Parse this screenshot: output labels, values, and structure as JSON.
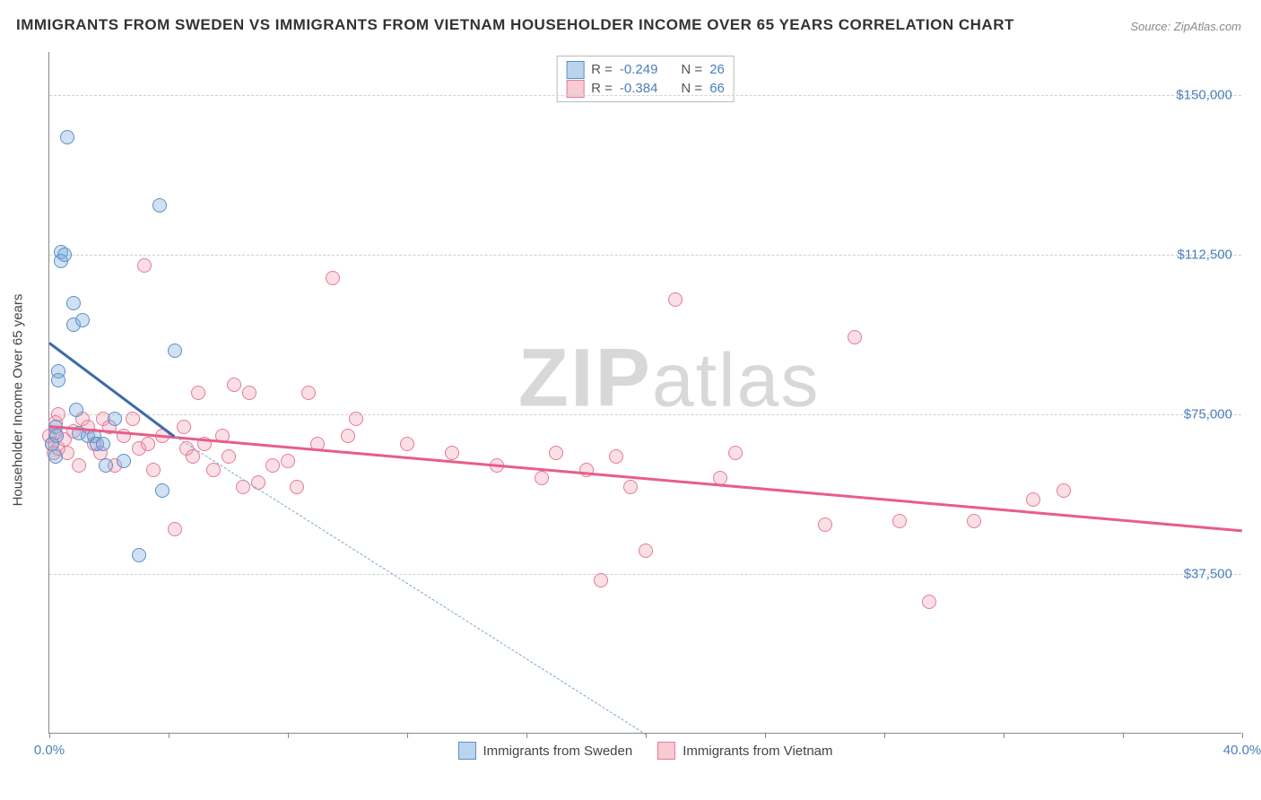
{
  "title": "IMMIGRANTS FROM SWEDEN VS IMMIGRANTS FROM VIETNAM HOUSEHOLDER INCOME OVER 65 YEARS CORRELATION CHART",
  "source": "Source: ZipAtlas.com",
  "watermark_bold": "ZIP",
  "watermark_rest": "atlas",
  "chart": {
    "type": "scatter",
    "xlim": [
      0,
      40
    ],
    "ylim": [
      0,
      160000
    ],
    "yticks": [
      37500,
      75000,
      112500,
      150000
    ],
    "ytick_labels": [
      "$37,500",
      "$75,000",
      "$112,500",
      "$150,000"
    ],
    "xtick_positions": [
      0,
      4,
      8,
      12,
      16,
      20,
      24,
      28,
      32,
      36,
      40
    ],
    "xlabel_min": "0.0%",
    "xlabel_max": "40.0%",
    "yaxis_label": "Householder Income Over 65 years",
    "background_color": "#ffffff",
    "grid_color": "#d0d0d0",
    "colors": {
      "sweden_fill": "rgba(120,170,220,0.35)",
      "sweden_stroke": "#5b8fc7",
      "sweden_line": "#3d6aa8",
      "vietnam_fill": "rgba(240,150,170,0.3)",
      "vietnam_stroke": "#e77a9a",
      "vietnam_line": "#e85d8a",
      "tick_text": "#4a7ebb"
    }
  },
  "stats": {
    "sweden": {
      "R_label": "R =",
      "R": "-0.249",
      "N_label": "N =",
      "N": "26"
    },
    "vietnam": {
      "R_label": "R =",
      "R": "-0.384",
      "N_label": "N =",
      "N": "66"
    }
  },
  "legend": {
    "sweden": "Immigrants from Sweden",
    "vietnam": "Immigrants from Vietnam"
  },
  "series": {
    "sweden": {
      "marker_radius": 8,
      "trend": {
        "x1": 0,
        "y1": 92000,
        "x2": 4.2,
        "y2": 70000,
        "dash_to_x": 20,
        "dash_to_y": 0
      },
      "points": [
        [
          0.1,
          68000
        ],
        [
          0.2,
          65000
        ],
        [
          0.2,
          72000
        ],
        [
          0.25,
          70000
        ],
        [
          0.3,
          85000
        ],
        [
          0.3,
          83000
        ],
        [
          0.4,
          113000
        ],
        [
          0.4,
          111000
        ],
        [
          0.5,
          112500
        ],
        [
          0.6,
          140000
        ],
        [
          0.8,
          101000
        ],
        [
          0.8,
          96000
        ],
        [
          0.9,
          76000
        ],
        [
          1.0,
          70500
        ],
        [
          1.1,
          97000
        ],
        [
          1.3,
          70000
        ],
        [
          1.5,
          70000
        ],
        [
          1.6,
          68000
        ],
        [
          1.8,
          68000
        ],
        [
          1.9,
          63000
        ],
        [
          2.2,
          74000
        ],
        [
          2.5,
          64000
        ],
        [
          3.0,
          42000
        ],
        [
          3.7,
          124000
        ],
        [
          3.8,
          57000
        ],
        [
          4.2,
          90000
        ]
      ]
    },
    "vietnam": {
      "marker_radius": 8,
      "trend": {
        "x1": 0,
        "y1": 72500,
        "x2": 40,
        "y2": 48000
      },
      "points": [
        [
          0.0,
          70000
        ],
        [
          0.1,
          68000
        ],
        [
          0.15,
          66000
        ],
        [
          0.2,
          70500
        ],
        [
          0.2,
          73000
        ],
        [
          0.3,
          75000
        ],
        [
          0.3,
          67000
        ],
        [
          0.5,
          69000
        ],
        [
          0.6,
          66000
        ],
        [
          0.8,
          71000
        ],
        [
          1.0,
          63000
        ],
        [
          1.1,
          74000
        ],
        [
          1.3,
          72000
        ],
        [
          1.5,
          68000
        ],
        [
          1.7,
          66000
        ],
        [
          1.8,
          74000
        ],
        [
          2.0,
          72000
        ],
        [
          2.2,
          63000
        ],
        [
          2.5,
          70000
        ],
        [
          2.8,
          74000
        ],
        [
          3.0,
          67000
        ],
        [
          3.2,
          110000
        ],
        [
          3.3,
          68000
        ],
        [
          3.5,
          62000
        ],
        [
          3.8,
          70000
        ],
        [
          4.2,
          48000
        ],
        [
          4.5,
          72000
        ],
        [
          4.6,
          67000
        ],
        [
          4.8,
          65000
        ],
        [
          5.0,
          80000
        ],
        [
          5.2,
          68000
        ],
        [
          5.5,
          62000
        ],
        [
          5.8,
          70000
        ],
        [
          6.0,
          65000
        ],
        [
          6.2,
          82000
        ],
        [
          6.5,
          58000
        ],
        [
          6.7,
          80000
        ],
        [
          7.0,
          59000
        ],
        [
          7.5,
          63000
        ],
        [
          8.0,
          64000
        ],
        [
          8.3,
          58000
        ],
        [
          8.7,
          80000
        ],
        [
          9.0,
          68000
        ],
        [
          9.5,
          107000
        ],
        [
          10.0,
          70000
        ],
        [
          10.3,
          74000
        ],
        [
          12.0,
          68000
        ],
        [
          13.5,
          66000
        ],
        [
          15.0,
          63000
        ],
        [
          16.5,
          60000
        ],
        [
          17.0,
          66000
        ],
        [
          18.0,
          62000
        ],
        [
          18.5,
          36000
        ],
        [
          19.0,
          65000
        ],
        [
          19.5,
          58000
        ],
        [
          20.0,
          43000
        ],
        [
          21.0,
          102000
        ],
        [
          22.5,
          60000
        ],
        [
          23.0,
          66000
        ],
        [
          26.0,
          49000
        ],
        [
          27.0,
          93000
        ],
        [
          28.5,
          50000
        ],
        [
          29.5,
          31000
        ],
        [
          31.0,
          50000
        ],
        [
          33.0,
          55000
        ],
        [
          34.0,
          57000
        ]
      ]
    }
  }
}
